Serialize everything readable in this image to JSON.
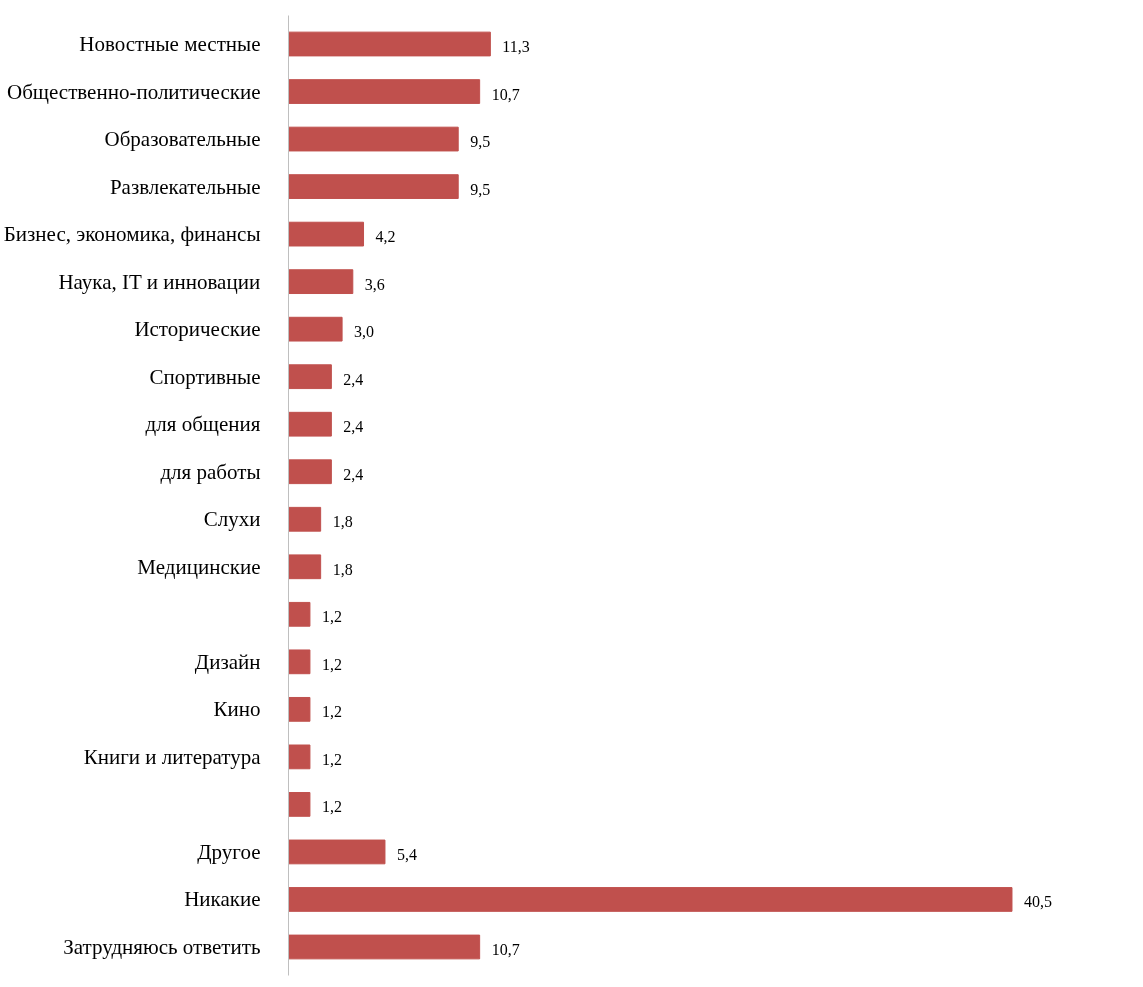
{
  "chart_data": {
    "type": "bar",
    "orientation": "horizontal",
    "categories": [
      "Новостные местные",
      "Общественно-политические",
      "Образовательные",
      "Развлекательные",
      "Бизнес, экономика, финансы",
      "Наука, IT и инновации",
      "Исторические",
      "Спортивные",
      "для общения",
      "для работы",
      "Слухи",
      "Медицинские",
      null,
      "Дизайн",
      "Кино",
      "Книги и литература",
      null,
      "Другое",
      "Никакие",
      "Затрудняюсь ответить"
    ],
    "values": [
      11.3,
      10.7,
      9.5,
      9.5,
      4.2,
      3.6,
      3.0,
      2.4,
      2.4,
      2.4,
      1.8,
      1.8,
      1.2,
      1.2,
      1.2,
      1.2,
      1.2,
      5.4,
      40.5,
      10.7
    ],
    "value_labels": [
      "11,3",
      "10,7",
      "9,5",
      "9,5",
      "4,2",
      "3,6",
      "3,0",
      "2,4",
      "2,4",
      "2,4",
      "1,8",
      "1,8",
      "1,2",
      "1,2",
      "1,2",
      "1,2",
      "1,2",
      "5,4",
      "40,5",
      "10,7"
    ],
    "color": "#c0504d"
  }
}
